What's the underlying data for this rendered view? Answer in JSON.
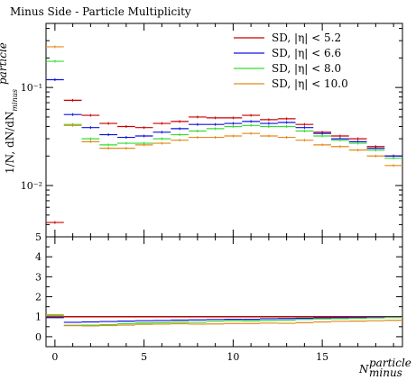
{
  "chart_data": {
    "type": "line",
    "style": "histogram-errorbars",
    "title": "Minus Side - Particle Multiplicity",
    "ylabel_main": "1/N, dN/dN",
    "ylabel_main_sup": "particle",
    "ylabel_main_sub": "minus",
    "xlabel": "N",
    "xlabel_sup": "particle",
    "xlabel_sub": "minus",
    "xlim": [
      -0.5,
      19.5
    ],
    "ylim_main": [
      0.003,
      0.45
    ],
    "yscale_main": "log",
    "ylim_ratio": [
      -0.5,
      5.0
    ],
    "x_ticks": [
      0,
      5,
      10,
      15
    ],
    "y_main_ticks": [
      {
        "value": 0.1,
        "label": "10⁻¹"
      },
      {
        "value": 0.01,
        "label": "10⁻²"
      }
    ],
    "y_ratio_ticks": [
      0,
      1,
      2,
      3,
      4,
      5
    ],
    "legend_placement": "top-right",
    "bins": [
      0,
      1,
      2,
      3,
      4,
      5,
      6,
      7,
      8,
      9,
      10,
      11,
      12,
      13,
      14,
      15,
      16,
      17,
      18,
      19
    ],
    "series": [
      {
        "name": "SD, |η| < 5.2",
        "legend_text": "SD, |η| < 5.2",
        "color": "#cc0000",
        "values": [
          0.0042,
          0.074,
          0.052,
          0.043,
          0.04,
          0.039,
          0.043,
          0.045,
          0.05,
          0.049,
          0.049,
          0.052,
          0.047,
          0.048,
          0.042,
          0.035,
          0.032,
          0.03,
          0.025,
          0.02
        ]
      },
      {
        "name": "SD, |η| < 6.6",
        "legend_text": "SD, |η| < 6.6",
        "color": "#1010e0",
        "values": [
          0.12,
          0.053,
          0.039,
          0.033,
          0.031,
          0.032,
          0.035,
          0.038,
          0.042,
          0.042,
          0.043,
          0.045,
          0.043,
          0.044,
          0.039,
          0.034,
          0.03,
          0.028,
          0.024,
          0.02
        ]
      },
      {
        "name": "SD, |η| < 8.0",
        "legend_text": "SD, |η| < 8.0",
        "color": "#33dd33",
        "values": [
          0.185,
          0.042,
          0.03,
          0.026,
          0.027,
          0.027,
          0.03,
          0.033,
          0.036,
          0.038,
          0.04,
          0.041,
          0.04,
          0.04,
          0.036,
          0.032,
          0.029,
          0.027,
          0.023,
          0.019
        ]
      },
      {
        "name": "SD, |η| < 10.0",
        "legend_text": "SD, |η| < 10.0",
        "color": "#e38a1a",
        "values": [
          0.26,
          0.041,
          0.028,
          0.024,
          0.024,
          0.026,
          0.027,
          0.029,
          0.031,
          0.031,
          0.032,
          0.034,
          0.032,
          0.031,
          0.029,
          0.026,
          0.025,
          0.023,
          0.02,
          0.016
        ]
      }
    ],
    "ratio_series": [
      {
        "name": "SD, |η| < 5.2",
        "color": "#cc0000",
        "values": [
          1.0,
          1.0,
          1.0,
          1.0,
          1.0,
          1.0,
          1.0,
          1.0,
          1.0,
          1.0,
          1.0,
          1.0,
          1.0,
          1.0,
          1.0,
          1.0,
          1.0,
          1.0,
          1.0,
          1.0
        ]
      },
      {
        "name": "SD, |η| < 6.6",
        "color": "#1010e0",
        "values": [
          0.95,
          0.72,
          0.74,
          0.76,
          0.78,
          0.8,
          0.81,
          0.83,
          0.84,
          0.86,
          0.87,
          0.87,
          0.9,
          0.91,
          0.92,
          0.94,
          0.95,
          0.96,
          0.97,
          0.98
        ]
      },
      {
        "name": "SD, |η| < 8.0",
        "color": "#33dd33",
        "values": [
          1.05,
          0.57,
          0.58,
          0.6,
          0.65,
          0.69,
          0.7,
          0.73,
          0.72,
          0.77,
          0.8,
          0.79,
          0.82,
          0.83,
          0.86,
          0.89,
          0.9,
          0.92,
          0.94,
          0.96
        ]
      },
      {
        "name": "SD, |η| < 10.0",
        "color": "#e38a1a",
        "values": [
          1.1,
          0.55,
          0.54,
          0.56,
          0.58,
          0.62,
          0.63,
          0.65,
          0.63,
          0.64,
          0.66,
          0.66,
          0.68,
          0.67,
          0.7,
          0.74,
          0.77,
          0.78,
          0.8,
          0.82
        ]
      }
    ]
  }
}
